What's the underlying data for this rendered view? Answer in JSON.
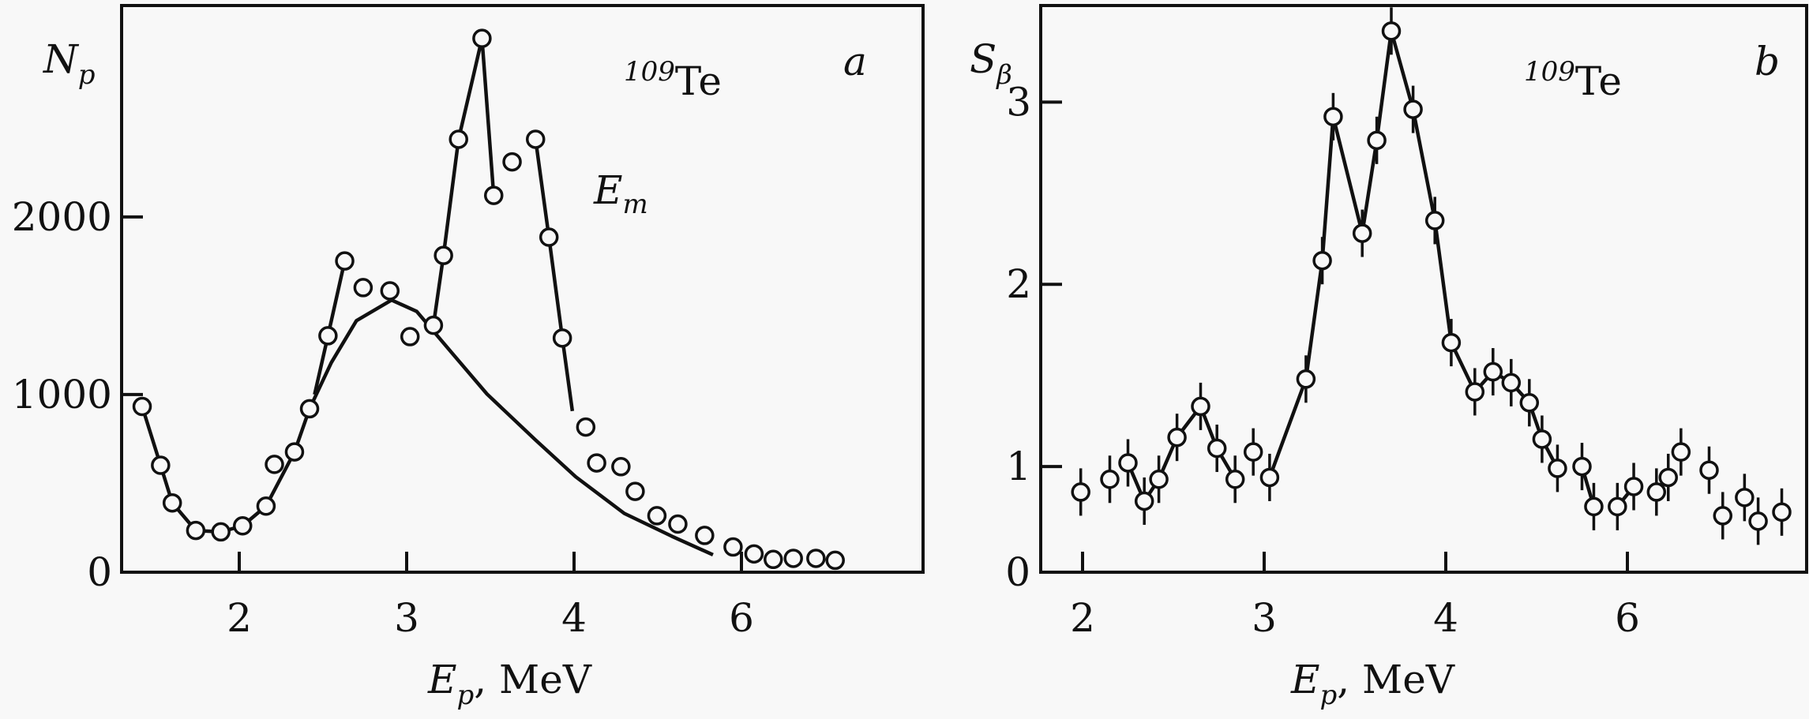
{
  "chart_data": [
    {
      "type": "scatter",
      "panel_label": "a",
      "annotation_isotope": {
        "mass": "109",
        "element": "Te"
      },
      "annotation_em": {
        "main": "E",
        "sub": "m"
      },
      "ylabel": {
        "main": "N",
        "sub": "p"
      },
      "xlabel": {
        "main": "E",
        "sub": "p",
        "rest": ", MeV"
      },
      "x_ticks": [
        2,
        3,
        4,
        6
      ],
      "x_tick_labels": [
        "2",
        "3",
        "4",
        "6"
      ],
      "y_ticks": [
        0,
        1000,
        2000
      ],
      "y_tick_labels": [
        "0",
        "1000",
        "2000"
      ],
      "ylim": [
        0,
        3190
      ],
      "grid": false,
      "points": {
        "x": [
          1.42,
          1.53,
          1.6,
          1.74,
          1.89,
          2.02,
          2.16,
          2.21,
          2.33,
          2.42,
          2.53,
          2.63,
          2.74,
          2.9,
          3.02,
          3.16,
          3.22,
          3.31,
          3.45,
          3.52,
          3.63,
          3.77,
          3.85,
          3.93,
          4.14,
          4.27,
          4.56,
          4.73,
          4.99,
          5.24,
          5.56,
          5.9,
          6.15,
          6.38,
          6.62,
          6.89,
          7.12
        ],
        "y": [
          933,
          602,
          390,
          235,
          227,
          261,
          372,
          607,
          677,
          920,
          1331,
          1752,
          1602,
          1584,
          1326,
          1390,
          1783,
          2437,
          3005,
          2121,
          2310,
          2437,
          1886,
          1318,
          817,
          615,
          594,
          455,
          318,
          271,
          207,
          142,
          103,
          72,
          78,
          78,
          67
        ]
      },
      "smooth_curve": {
        "x": [
          1.42,
          1.53,
          1.6,
          1.74,
          1.89,
          2.02,
          2.16,
          2.33,
          2.42,
          2.55,
          2.7,
          2.91,
          3.06,
          3.27,
          3.48,
          3.77,
          4.02,
          4.6,
          5.17,
          5.66
        ],
        "y": [
          933,
          602,
          390,
          235,
          227,
          261,
          372,
          677,
          920,
          1180,
          1416,
          1532,
          1468,
          1235,
          1003,
          744,
          537,
          331,
          202,
          98
        ]
      },
      "line_segments": [
        {
          "x": [
            2.45,
            2.53,
            2.63
          ],
          "y": [
            1000,
            1331,
            1752
          ]
        },
        {
          "x": [
            3.16,
            3.22,
            3.31,
            3.4,
            3.45,
            3.52
          ],
          "y": [
            1390,
            1783,
            2437,
            2800,
            3005,
            2121
          ]
        },
        {
          "x": [
            3.77,
            3.85,
            3.93,
            3.99
          ],
          "y": [
            2437,
            1886,
            1318,
            907
          ]
        }
      ]
    },
    {
      "type": "scatter",
      "panel_label": "b",
      "annotation_isotope": {
        "mass": "109",
        "element": "Te"
      },
      "ylabel": {
        "main": "S",
        "sub": "β"
      },
      "xlabel": {
        "main": "E",
        "sub": "p",
        "rest": ", MeV"
      },
      "x_ticks": [
        2,
        3,
        4,
        6
      ],
      "x_tick_labels": [
        "2",
        "3",
        "4",
        "6"
      ],
      "y_ticks": [
        1,
        2,
        3
      ],
      "y_tick_labels": [
        "1",
        "2",
        "3"
      ],
      "y_origin_label": "0",
      "ylim": [
        0.42,
        3.53
      ],
      "grid": false,
      "points": {
        "x": [
          1.99,
          2.15,
          2.25,
          2.34,
          2.42,
          2.52,
          2.65,
          2.74,
          2.84,
          2.94,
          3.03,
          3.23,
          3.32,
          3.38,
          3.54,
          3.62,
          3.7,
          3.82,
          3.94,
          4.06,
          4.32,
          4.52,
          4.72,
          4.92,
          5.06,
          5.23,
          5.5,
          5.63,
          5.89,
          6.07,
          6.32,
          6.45,
          6.59,
          6.9,
          7.05,
          7.29,
          7.44,
          7.7
        ],
        "y": [
          0.86,
          0.93,
          1.02,
          0.81,
          0.93,
          1.16,
          1.33,
          1.1,
          0.93,
          1.08,
          0.94,
          1.48,
          2.13,
          2.92,
          2.28,
          2.79,
          3.39,
          2.96,
          2.35,
          1.68,
          1.41,
          1.52,
          1.46,
          1.35,
          1.15,
          0.99,
          1.0,
          0.78,
          0.78,
          0.89,
          0.86,
          0.94,
          1.08,
          0.98,
          0.73,
          0.83,
          0.7,
          0.75
        ],
        "error": 0.13
      },
      "connected_ranges": [
        [
          2,
          8
        ],
        [
          10,
          25
        ],
        [
          26,
          27
        ],
        [
          28,
          29
        ]
      ]
    }
  ]
}
